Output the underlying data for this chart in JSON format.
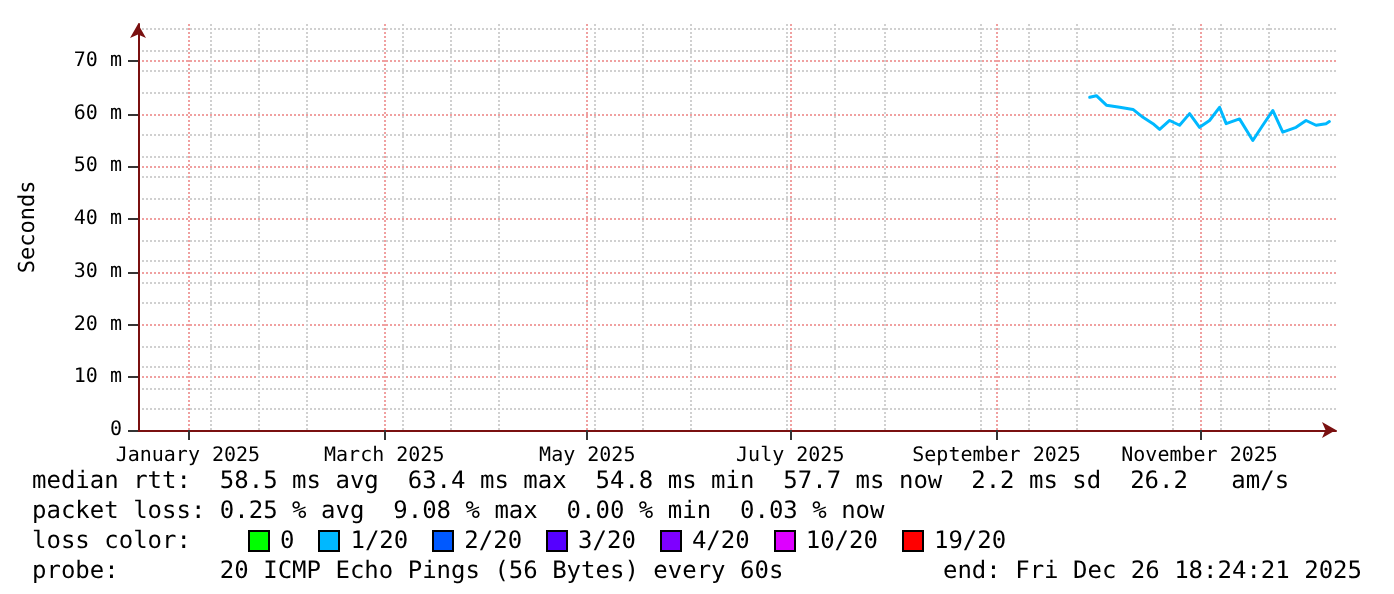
{
  "chart_data": {
    "type": "line",
    "ylabel": "Seconds",
    "x": [
      "2025-09-29",
      "2025-10-01",
      "2025-10-04",
      "2025-10-08",
      "2025-10-12",
      "2025-10-15",
      "2025-10-18",
      "2025-10-20",
      "2025-10-23",
      "2025-10-26",
      "2025-10-29",
      "2025-11-01",
      "2025-11-04",
      "2025-11-07",
      "2025-11-09",
      "2025-11-13",
      "2025-11-17",
      "2025-11-20",
      "2025-11-23",
      "2025-11-26",
      "2025-11-30",
      "2025-12-03",
      "2025-12-06",
      "2025-12-09",
      "2025-12-10"
    ],
    "series": [
      {
        "color": "#00b8ff",
        "values": [
          63.1,
          63.4,
          61.6,
          61.2,
          60.8,
          59.3,
          58.1,
          57.0,
          58.7,
          57.8,
          60.0,
          57.4,
          58.7,
          61.2,
          58.1,
          59.0,
          54.9,
          57.8,
          60.6,
          56.5,
          57.4,
          58.7,
          57.8,
          58.1,
          58.5
        ]
      }
    ],
    "xlim": [
      "2024-12-17",
      "2025-12-12"
    ],
    "xticks": [
      {
        "value": "2025-01-01",
        "label": "January 2025"
      },
      {
        "value": "2025-03-01",
        "label": "March 2025"
      },
      {
        "value": "2025-05-01",
        "label": "May 2025"
      },
      {
        "value": "2025-07-01",
        "label": "July 2025"
      },
      {
        "value": "2025-09-01",
        "label": "September 2025"
      },
      {
        "value": "2025-11-01",
        "label": "November 2025"
      }
    ],
    "ylim": [
      0,
      77
    ],
    "yticks": [
      0,
      {
        "value": 10,
        "label": "10 m"
      },
      {
        "value": 20,
        "label": "20 m"
      },
      {
        "value": 30,
        "label": "30 m"
      },
      {
        "value": 40,
        "label": "40 m"
      },
      {
        "value": 50,
        "label": "50 m"
      },
      {
        "value": 60,
        "label": "60 m"
      },
      {
        "value": 70,
        "label": "70 m"
      }
    ],
    "grid": true,
    "marker": "none",
    "line_style": "solid",
    "annotations": [
      "median rtt:  58.5 ms avg  63.4 ms max  54.8 ms min  57.7 ms now  2.2 ms sd  26.2   am/s",
      "packet loss: 0.25 % avg  9.08 % max  0.00 % min  0.03 % now",
      "loss color:",
      "0",
      "1/20",
      "2/20",
      "3/20",
      "4/20",
      "10/20",
      "19/20",
      "probe:       20 ICMP Echo Pings (56 Bytes) every 60s",
      "end: Fri Dec 26 18:24:21 2025"
    ]
  }
}
